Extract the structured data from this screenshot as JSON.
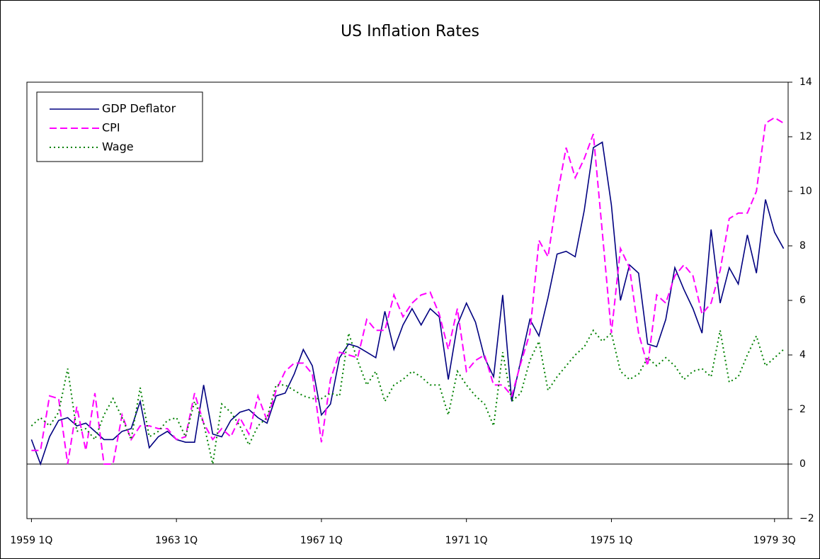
{
  "chart_data": {
    "type": "line",
    "title": "US Inflation Rates",
    "categories": [
      "1959 1Q",
      null,
      null,
      null,
      null,
      null,
      null,
      null,
      null,
      null,
      null,
      null,
      null,
      null,
      null,
      null,
      "1963 1Q",
      null,
      null,
      null,
      null,
      null,
      null,
      null,
      null,
      null,
      null,
      null,
      null,
      null,
      null,
      null,
      "1967 1Q",
      null,
      null,
      null,
      null,
      null,
      null,
      null,
      null,
      null,
      null,
      null,
      null,
      null,
      null,
      null,
      "1971 1Q",
      null,
      null,
      null,
      null,
      null,
      null,
      null,
      null,
      null,
      null,
      null,
      null,
      null,
      null,
      null,
      "1975 1Q",
      null,
      null,
      null,
      null,
      null,
      null,
      null,
      null,
      null,
      null,
      null,
      null,
      null,
      null,
      null,
      null,
      null,
      "1979 3Q",
      null
    ],
    "series": [
      {
        "name": "GDP Deflator",
        "color": "#000080",
        "style": "solid",
        "values": [
          0.9,
          0,
          1.0,
          1.6,
          1.7,
          1.4,
          1.5,
          1.2,
          0.9,
          0.9,
          1.2,
          1.3,
          2.3,
          0.6,
          1.0,
          1.2,
          0.9,
          0.8,
          0.8,
          2.9,
          1.1,
          1.0,
          1.6,
          1.9,
          2.0,
          1.7,
          1.5,
          2.5,
          2.6,
          3.3,
          4.2,
          3.6,
          1.8,
          2.2,
          3.9,
          4.4,
          4.3,
          4.1,
          3.9,
          5.6,
          4.2,
          5.1,
          5.7,
          5.1,
          5.7,
          5.4,
          3.1,
          5.1,
          5.9,
          5.2,
          3.9,
          3.2,
          6.2,
          2.3,
          3.8,
          5.3,
          4.7,
          6.1,
          7.7,
          7.8,
          7.6,
          9.3,
          11.6,
          11.8,
          9.5,
          6.0,
          7.3,
          7.0,
          4.4,
          4.3,
          5.3,
          7.2,
          6.4,
          5.7,
          4.8,
          8.6,
          5.9,
          7.2,
          6.6,
          8.4,
          7.0,
          9.7,
          8.5,
          7.9
        ]
      },
      {
        "name": "CPI",
        "color": "#ff00ff",
        "style": "dashed",
        "values": [
          0.5,
          0.5,
          2.5,
          2.4,
          0,
          2.1,
          0.5,
          2.6,
          0,
          0,
          1.8,
          0.9,
          1.4,
          1.4,
          1.3,
          1.3,
          0.9,
          1.0,
          2.6,
          1.5,
          0.9,
          1.3,
          1.0,
          1.7,
          1.1,
          2.5,
          1.6,
          2.7,
          3.4,
          3.7,
          3.7,
          3.3,
          0.8,
          3.1,
          4.1,
          4.0,
          3.9,
          5.3,
          4.9,
          4.9,
          6.2,
          5.4,
          5.9,
          6.2,
          6.3,
          5.5,
          4.2,
          5.7,
          3.4,
          3.8,
          4.0,
          2.9,
          2.9,
          2.5,
          3.7,
          4.8,
          8.2,
          7.6,
          9.8,
          11.6,
          10.5,
          11.2,
          12.1,
          8.5,
          4.8,
          7.9,
          7.2,
          4.8,
          3.6,
          6.2,
          5.9,
          6.9,
          7.3,
          6.9,
          5.5,
          5.9,
          7.1,
          9.0,
          9.2,
          9.2,
          10.0,
          12.5,
          12.7,
          12.5
        ]
      },
      {
        "name": "Wage",
        "color": "#008000",
        "style": "dotted",
        "values": [
          1.4,
          1.7,
          1.4,
          1.9,
          3.5,
          1.2,
          1.3,
          0.9,
          1.8,
          2.4,
          1.7,
          0.9,
          2.8,
          1.0,
          1.2,
          1.6,
          1.7,
          1.0,
          2.3,
          1.5,
          0,
          2.2,
          1.9,
          1.4,
          0.7,
          1.4,
          1.7,
          2.9,
          2.9,
          2.7,
          2.5,
          2.4,
          2.4,
          2.6,
          2.5,
          4.8,
          3.8,
          2.9,
          3.4,
          2.3,
          2.9,
          3.1,
          3.4,
          3.2,
          2.9,
          2.9,
          1.8,
          3.4,
          2.9,
          2.5,
          2.2,
          1.4,
          4.1,
          2.3,
          2.6,
          3.8,
          4.5,
          2.7,
          3.2,
          3.6,
          4.0,
          4.3,
          4.9,
          4.5,
          4.8,
          3.4,
          3.1,
          3.3,
          3.9,
          3.6,
          3.9,
          3.6,
          3.1,
          3.4,
          3.5,
          3.2,
          4.9,
          3.0,
          3.2,
          4.0,
          4.7,
          3.6,
          3.9,
          4.2
        ]
      }
    ],
    "ylim": [
      -2,
      14
    ],
    "yticks": [
      {
        "value": -2,
        "label": "−2"
      },
      0,
      2,
      4,
      6,
      8,
      10,
      12,
      14
    ],
    "y_axis_side": "right",
    "zero_line": true,
    "legend": "upper left"
  }
}
